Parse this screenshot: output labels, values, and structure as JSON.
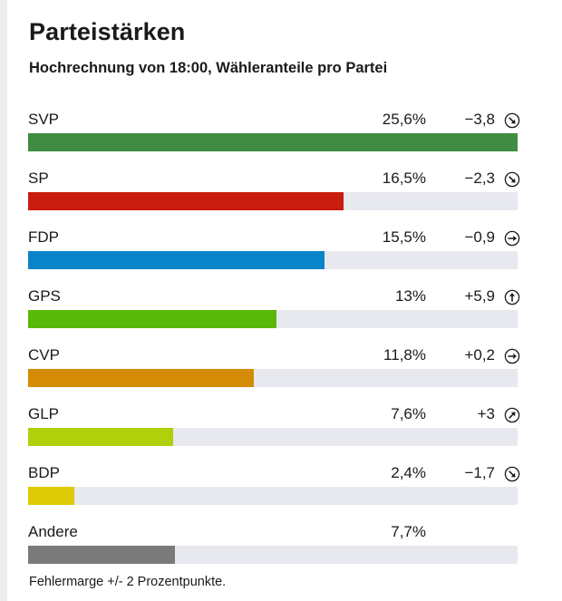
{
  "header": {
    "title": "Parteistärken",
    "subtitle": "Hochrechnung von 18:00, Wähleranteile pro Partei"
  },
  "footnote": "Fehlermarge +/- 2 Prozentpunkte.",
  "colors": {
    "track": "#e8e8ef"
  },
  "chart_data": {
    "type": "bar",
    "orientation": "horizontal",
    "title": "Parteistärken",
    "subtitle": "Hochrechnung von 18:00, Wähleranteile pro Partei",
    "xlim": [
      0,
      25.6
    ],
    "categories": [
      "SVP",
      "SP",
      "FDP",
      "GPS",
      "CVP",
      "GLP",
      "BDP",
      "Andere"
    ],
    "values": [
      25.6,
      16.5,
      15.5,
      13,
      11.8,
      7.6,
      2.4,
      7.7
    ],
    "rows": [
      {
        "party": "SVP",
        "share_label": "25,6%",
        "value": 25.6,
        "change_label": "−3,8",
        "trend_icon": "trend-down-icon",
        "trend_angle": 135,
        "color": "#3f8c42"
      },
      {
        "party": "SP",
        "share_label": "16,5%",
        "value": 16.5,
        "change_label": "−2,3",
        "trend_icon": "trend-down-icon",
        "trend_angle": 135,
        "color": "#c81d0f"
      },
      {
        "party": "FDP",
        "share_label": "15,5%",
        "value": 15.5,
        "change_label": "−0,9",
        "trend_icon": "trend-flat-icon",
        "trend_angle": 90,
        "color": "#0a84c8"
      },
      {
        "party": "GPS",
        "share_label": "13%",
        "value": 13,
        "change_label": "+5,9",
        "trend_icon": "trend-up-icon",
        "trend_angle": 0,
        "color": "#59b808"
      },
      {
        "party": "CVP",
        "share_label": "11,8%",
        "value": 11.8,
        "change_label": "+0,2",
        "trend_icon": "trend-flat-icon",
        "trend_angle": 90,
        "color": "#d48b05"
      },
      {
        "party": "GLP",
        "share_label": "7,6%",
        "value": 7.6,
        "change_label": "+3",
        "trend_icon": "trend-up-right-icon",
        "trend_angle": 45,
        "color": "#b1d00c"
      },
      {
        "party": "BDP",
        "share_label": "2,4%",
        "value": 2.4,
        "change_label": "−1,7",
        "trend_icon": "trend-down-icon",
        "trend_angle": 135,
        "color": "#dccb05"
      },
      {
        "party": "Andere",
        "share_label": "7,7%",
        "value": 7.7,
        "change_label": "",
        "trend_icon": "",
        "trend_angle": null,
        "color": "#7a7a7a"
      }
    ]
  }
}
